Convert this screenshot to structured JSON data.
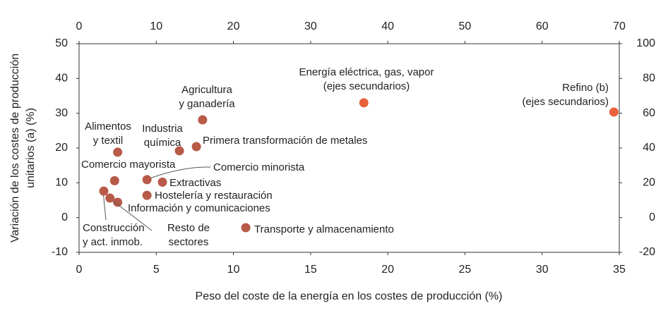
{
  "chart_data": {
    "type": "scatter",
    "x_axis_label": "Peso del coste de la energía en los costes de producción (%)",
    "y_axis_label": [
      "Variación de los costes de producción",
      "unitarios (a) (%)"
    ],
    "xlim": [
      0,
      35
    ],
    "xticks": [
      0,
      5,
      10,
      15,
      20,
      25,
      30,
      35
    ],
    "ylim": [
      -10,
      50
    ],
    "yticks": [
      -10,
      0,
      10,
      20,
      30,
      40,
      50
    ],
    "x2lim": [
      0,
      70
    ],
    "x2ticks": [
      0,
      10,
      20,
      30,
      40,
      50,
      60,
      70
    ],
    "y2lim": [
      -20,
      100
    ],
    "y2ticks": [
      -20,
      0,
      20,
      40,
      60,
      80,
      100
    ],
    "grid": false,
    "series": [
      {
        "color": "#b85a48",
        "x": [
          2.5,
          2.3,
          6.5,
          8.0,
          7.6,
          4.4,
          5.4,
          4.4,
          2.5,
          1.6,
          2.0,
          10.8
        ],
        "values": [
          18.8,
          10.6,
          19.2,
          28.1,
          20.4,
          10.9,
          10.2,
          6.4,
          4.4,
          7.6,
          5.6,
          -2.9
        ],
        "labels": [
          [
            "Alimentos",
            "y textil"
          ],
          [
            "Comercio mayorista"
          ],
          [
            "Industria",
            "química"
          ],
          [
            "Agricultura",
            "y ganadería"
          ],
          [
            "Primera transformación de metales"
          ],
          [
            "Comercio minorista"
          ],
          [
            "Extractivas"
          ],
          [
            "Hostelería y restauración"
          ],
          [
            "Información y comunicaciones"
          ],
          [
            "Construcción",
            "y act. inmob."
          ],
          [
            "Resto de",
            "sectores"
          ],
          [
            "Transporte y almacenamiento"
          ]
        ]
      },
      {
        "color": "#e8613a",
        "axis": "y2",
        "x": [
          36.9,
          69.3
        ],
        "values": [
          66,
          60.7
        ],
        "labels": [
          [
            "Energía eléctrica, gas, vapor",
            "(ejes secundarios)"
          ],
          [
            "Refino (b)",
            "(ejes secundarios)"
          ]
        ]
      }
    ]
  }
}
